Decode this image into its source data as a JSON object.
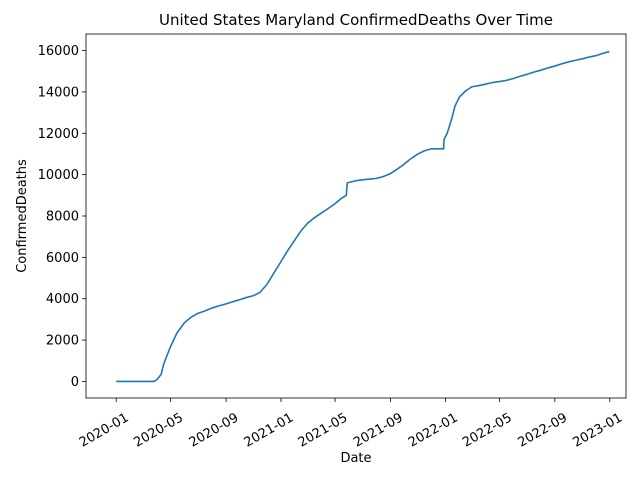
{
  "chart_data": {
    "type": "line",
    "title": "United States Maryland ConfirmedDeaths Over Time",
    "xlabel": "Date",
    "ylabel": "ConfirmedDeaths",
    "x_ticks": [
      "2020-01",
      "2020-05",
      "2020-09",
      "2021-01",
      "2021-05",
      "2021-09",
      "2022-01",
      "2022-05",
      "2022-09",
      "2023-01"
    ],
    "y_ticks": [
      "0",
      "2000",
      "4000",
      "6000",
      "8000",
      "10000",
      "12000",
      "14000",
      "16000"
    ],
    "ylim": [
      -800,
      16800
    ],
    "xlim": [
      "2019-10-26",
      "2023-02-06"
    ],
    "grid": false,
    "series": [
      {
        "color": "#1f77b4",
        "x": [
          "2020-01-01",
          "2020-03-25",
          "2020-04-01",
          "2020-04-10",
          "2020-04-15",
          "2020-04-20",
          "2020-05-01",
          "2020-05-15",
          "2020-06-01",
          "2020-06-15",
          "2020-07-01",
          "2020-07-15",
          "2020-08-01",
          "2020-08-15",
          "2020-09-01",
          "2020-09-15",
          "2020-10-01",
          "2020-10-15",
          "2020-11-01",
          "2020-11-15",
          "2020-12-01",
          "2020-12-15",
          "2021-01-01",
          "2021-01-15",
          "2021-02-01",
          "2021-02-15",
          "2021-03-01",
          "2021-03-15",
          "2021-04-01",
          "2021-04-15",
          "2021-05-01",
          "2021-05-15",
          "2021-05-26",
          "2021-05-28",
          "2021-06-15",
          "2021-07-01",
          "2021-07-15",
          "2021-08-01",
          "2021-08-15",
          "2021-09-01",
          "2021-09-15",
          "2021-10-01",
          "2021-10-15",
          "2021-11-01",
          "2021-11-15",
          "2021-12-01",
          "2021-12-14",
          "2021-12-28",
          "2021-12-29",
          "2022-01-05",
          "2022-01-15",
          "2022-01-22",
          "2022-02-01",
          "2022-02-15",
          "2022-03-01",
          "2022-03-15",
          "2022-04-01",
          "2022-04-15",
          "2022-05-01",
          "2022-05-15",
          "2022-06-01",
          "2022-06-15",
          "2022-07-01",
          "2022-07-15",
          "2022-08-01",
          "2022-08-15",
          "2022-09-01",
          "2022-09-15",
          "2022-10-01",
          "2022-10-15",
          "2022-11-01",
          "2022-11-15",
          "2022-12-01",
          "2022-12-15",
          "2022-12-31"
        ],
        "y": [
          0,
          0,
          100,
          350,
          800,
          1100,
          1700,
          2350,
          2850,
          3100,
          3300,
          3400,
          3550,
          3650,
          3750,
          3850,
          3950,
          4050,
          4150,
          4300,
          4700,
          5200,
          5800,
          6300,
          6850,
          7300,
          7650,
          7900,
          8150,
          8350,
          8600,
          8850,
          9000,
          9600,
          9700,
          9750,
          9780,
          9820,
          9900,
          10050,
          10250,
          10500,
          10750,
          11000,
          11150,
          11250,
          11250,
          11250,
          11700,
          12000,
          12700,
          13300,
          13750,
          14050,
          14250,
          14300,
          14380,
          14450,
          14500,
          14550,
          14650,
          14750,
          14850,
          14950,
          15050,
          15150,
          15250,
          15350,
          15450,
          15520,
          15600,
          15680,
          15750,
          15850,
          15950
        ]
      }
    ]
  }
}
